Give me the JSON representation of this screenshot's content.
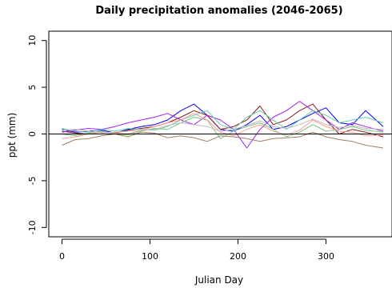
{
  "chart_data": {
    "type": "line",
    "title": "Daily precipitation anomalies (2046-2065)",
    "xlabel": "Julian Day",
    "ylabel": "ppt (mm)",
    "xlim": [
      -15,
      375
    ],
    "ylim": [
      -11,
      11
    ],
    "xticks": [
      0,
      100,
      200,
      300
    ],
    "yticks": [
      -10,
      -5,
      0,
      5,
      10
    ],
    "xtick_labels": [
      "0",
      "100",
      "200",
      "300"
    ],
    "ytick_labels": [
      "-10",
      "-5",
      "0",
      "5",
      "10"
    ],
    "reference_line": 0,
    "grid": false,
    "legend": "none",
    "x": [
      0,
      15,
      30,
      45,
      60,
      75,
      90,
      105,
      120,
      135,
      150,
      165,
      180,
      195,
      210,
      225,
      240,
      255,
      270,
      285,
      300,
      315,
      330,
      345,
      365
    ],
    "series": [
      {
        "color": "#0000ff",
        "values": [
          0.5,
          0.2,
          0.3,
          0.4,
          0.1,
          0.5,
          0.8,
          1.0,
          1.5,
          2.5,
          3.2,
          2.0,
          0.5,
          0.3,
          1.0,
          2.0,
          0.5,
          0.8,
          1.5,
          2.2,
          2.8,
          1.2,
          1.0,
          2.5,
          0.8
        ]
      },
      {
        "color": "#8b1a1a",
        "values": [
          0.3,
          0.1,
          0.0,
          0.2,
          0.1,
          0.4,
          0.6,
          0.8,
          1.2,
          1.8,
          2.5,
          2.0,
          0.5,
          0.8,
          1.5,
          3.0,
          1.0,
          1.5,
          2.5,
          3.2,
          1.5,
          0.0,
          0.5,
          0.2,
          -0.3
        ]
      },
      {
        "color": "#a020f0",
        "values": [
          0.2,
          0.4,
          0.6,
          0.5,
          0.8,
          1.2,
          1.5,
          1.8,
          2.2,
          1.5,
          1.0,
          2.0,
          1.5,
          0.5,
          -1.5,
          0.5,
          1.8,
          2.5,
          3.5,
          2.5,
          1.5,
          0.5,
          1.2,
          0.8,
          0.3
        ]
      },
      {
        "color": "#66cdaa",
        "values": [
          0.6,
          0.3,
          0.2,
          0.5,
          0.3,
          0.6,
          0.5,
          0.4,
          0.8,
          1.5,
          2.0,
          2.5,
          1.0,
          0.5,
          1.8,
          2.5,
          1.5,
          0.5,
          1.5,
          2.5,
          2.0,
          1.2,
          1.5,
          1.8,
          1.2
        ]
      },
      {
        "color": "#7cc47c",
        "values": [
          0.0,
          -0.2,
          0.1,
          0.3,
          0.0,
          -0.1,
          0.3,
          0.6,
          0.5,
          1.2,
          1.8,
          1.5,
          -0.5,
          0.3,
          0.8,
          1.2,
          0.5,
          -0.3,
          0.2,
          1.0,
          0.3,
          0.5,
          0.8,
          0.4,
          0.2
        ]
      },
      {
        "color": "#ff9999",
        "values": [
          -0.5,
          -0.3,
          0.0,
          0.2,
          0.1,
          0.0,
          0.4,
          0.8,
          1.2,
          1.5,
          2.2,
          1.5,
          0.2,
          -0.2,
          0.5,
          1.0,
          0.3,
          -0.1,
          0.4,
          1.5,
          0.8,
          0.3,
          0.2,
          -0.2,
          -0.1
        ]
      },
      {
        "color": "#a08060",
        "values": [
          -1.2,
          -0.6,
          -0.5,
          -0.2,
          0.0,
          -0.3,
          0.2,
          0.1,
          -0.4,
          -0.2,
          -0.4,
          -0.8,
          -0.2,
          -0.3,
          -0.5,
          -0.8,
          -0.5,
          -0.4,
          -0.3,
          0.2,
          -0.3,
          -0.6,
          -0.8,
          -1.2,
          -1.5
        ]
      },
      {
        "color": "#bbbbbb",
        "values": [
          0.4,
          0.5,
          0.3,
          0.1,
          0.2,
          0.3,
          0.4,
          0.5,
          0.9,
          1.2,
          1.0,
          0.8,
          0.3,
          0.5,
          0.9,
          1.4,
          0.8,
          0.6,
          1.0,
          1.6,
          1.0,
          0.7,
          0.9,
          0.6,
          0.5
        ]
      }
    ]
  }
}
